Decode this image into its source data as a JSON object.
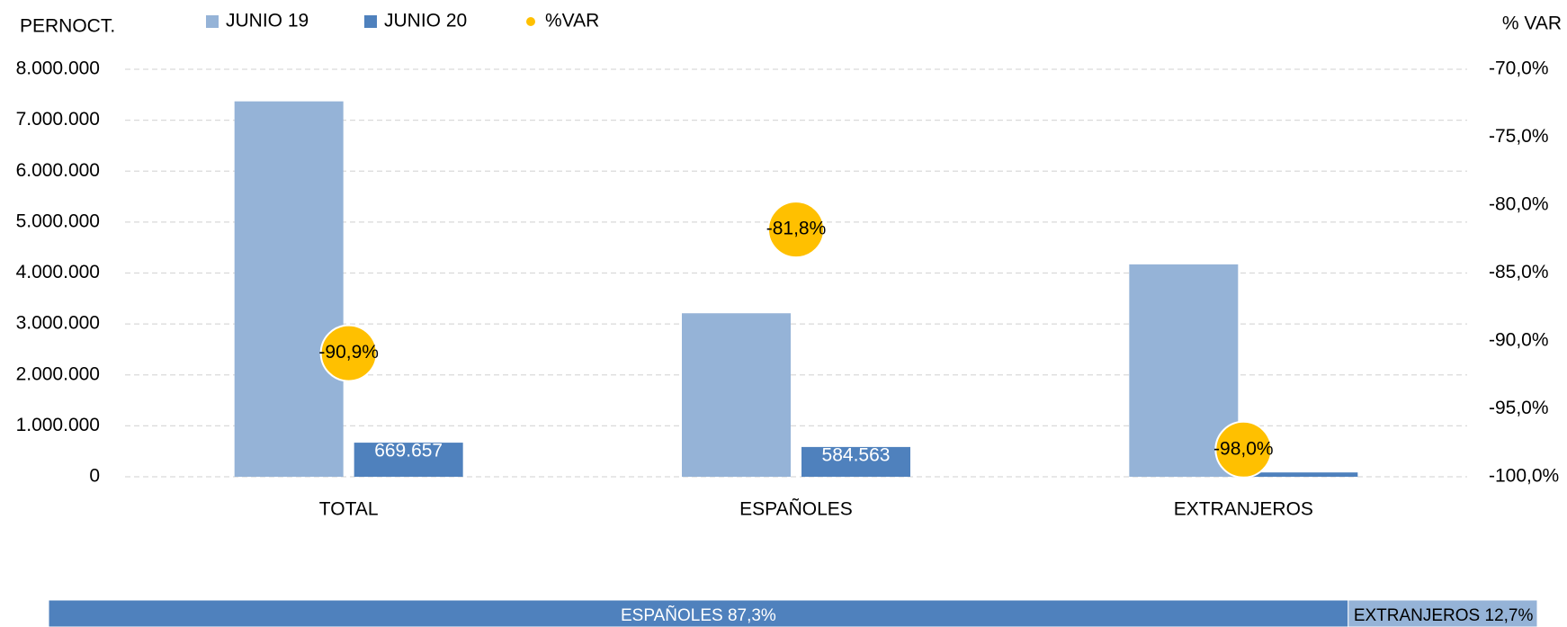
{
  "chart_data": [
    {
      "type": "bar",
      "y_label": "PERNOCT.",
      "y2_label": "% VAR",
      "categories": [
        "TOTAL",
        "ESPAÑOLES",
        "EXTRANJEROS"
      ],
      "series": [
        {
          "name": "JUNIO 19",
          "color": "#95b3d7",
          "values": [
            7370000,
            3210000,
            4170000
          ]
        },
        {
          "name": "JUNIO 20",
          "color": "#4f81bd",
          "values": [
            669657,
            584563,
            85094
          ],
          "value_labels": [
            "669.657",
            "584.563",
            null
          ]
        },
        {
          "name": "%VAR",
          "color": "#ffc000",
          "type": "scatter",
          "axis": "y2",
          "values": [
            -90.9,
            -81.8,
            -98.0
          ],
          "value_labels": [
            "-90,9%",
            "-81,8%",
            "-98,0%"
          ]
        }
      ],
      "ylim": [
        0,
        8000000
      ],
      "yticks": [
        0,
        {
          "value": 1000000,
          "label": "1.000.000"
        },
        {
          "value": 2000000,
          "label": "2.000.000"
        },
        {
          "value": 3000000,
          "label": "3.000.000"
        },
        {
          "value": 4000000,
          "label": "4.000.000"
        },
        {
          "value": 5000000,
          "label": "5.000.000"
        },
        {
          "value": 6000000,
          "label": "6.000.000"
        },
        {
          "value": 7000000,
          "label": "7.000.000"
        },
        {
          "value": 8000000,
          "label": "8.000.000"
        }
      ],
      "y2lim": [
        -100,
        -70
      ],
      "y2ticks": [
        {
          "value": -100,
          "label": "-100,0%"
        },
        {
          "value": -95,
          "label": "-95,0%"
        },
        {
          "value": -90,
          "label": "-90,0%"
        },
        {
          "value": -85,
          "label": "-85,0%"
        },
        {
          "value": -80,
          "label": "-80,0%"
        },
        {
          "value": -75,
          "label": "-75,0%"
        },
        {
          "value": -70,
          "label": "-70,0%"
        }
      ],
      "grid": true,
      "legend": "top"
    },
    {
      "type": "stacked_share",
      "categories": [
        "ESPAÑOLES",
        "EXTRANJEROS"
      ],
      "values": [
        87.3,
        12.7
      ],
      "value_labels": [
        "ESPAÑOLES 87,3%",
        "EXTRANJEROS 12,7%"
      ],
      "colors": [
        "#4f81bd",
        "#95b3d7"
      ],
      "xlim": [
        0,
        100
      ]
    }
  ]
}
